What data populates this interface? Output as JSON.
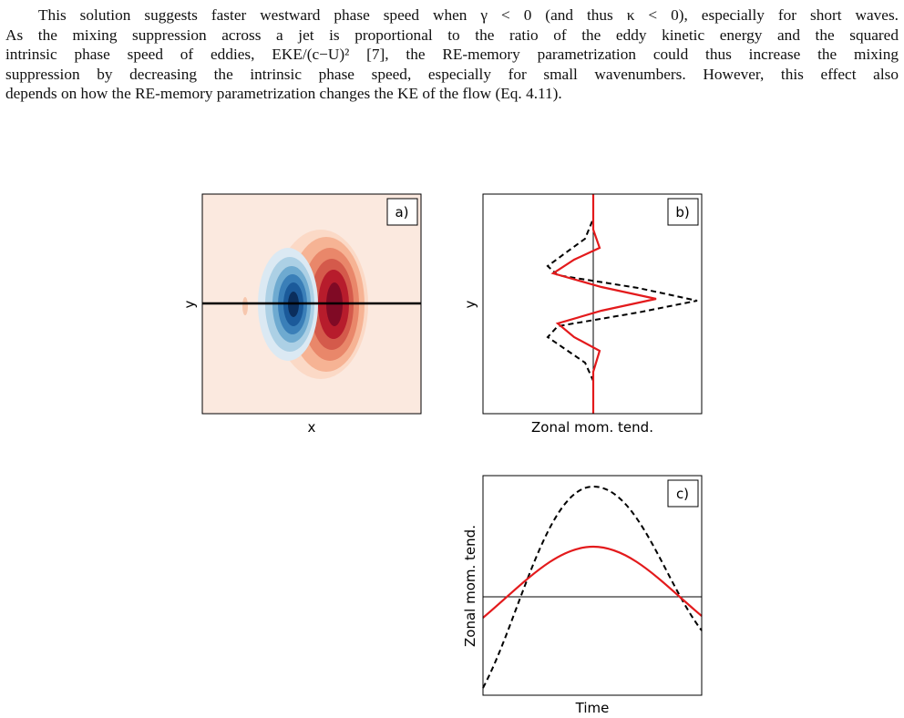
{
  "paragraph": [
    "This solution suggests faster westward phase speed when γ < 0 (and thus κ < 0), especially for short waves.",
    "As the mixing suppression across a jet is proportional to the ratio of the eddy kinetic energy and the squared",
    "intrinsic phase speed of eddies, EKE/(c−U)² [7], the RE-memory parametrization could thus increase the mixing",
    "suppression by decreasing the intrinsic phase speed, especially for small wavenumbers. However, this effect also",
    "depends on how the RE-memory parametrization changes the KE of the flow (Eq. 4.11)."
  ],
  "figure": {
    "panels": [
      {
        "label": "a)",
        "xlabel": "x",
        "ylabel": "y"
      },
      {
        "label": "b)",
        "xlabel": "Zonal mom. tend.",
        "ylabel": "y"
      },
      {
        "label": "c)",
        "xlabel": "Time",
        "ylabel": "Zonal mom. tend."
      }
    ]
  }
}
